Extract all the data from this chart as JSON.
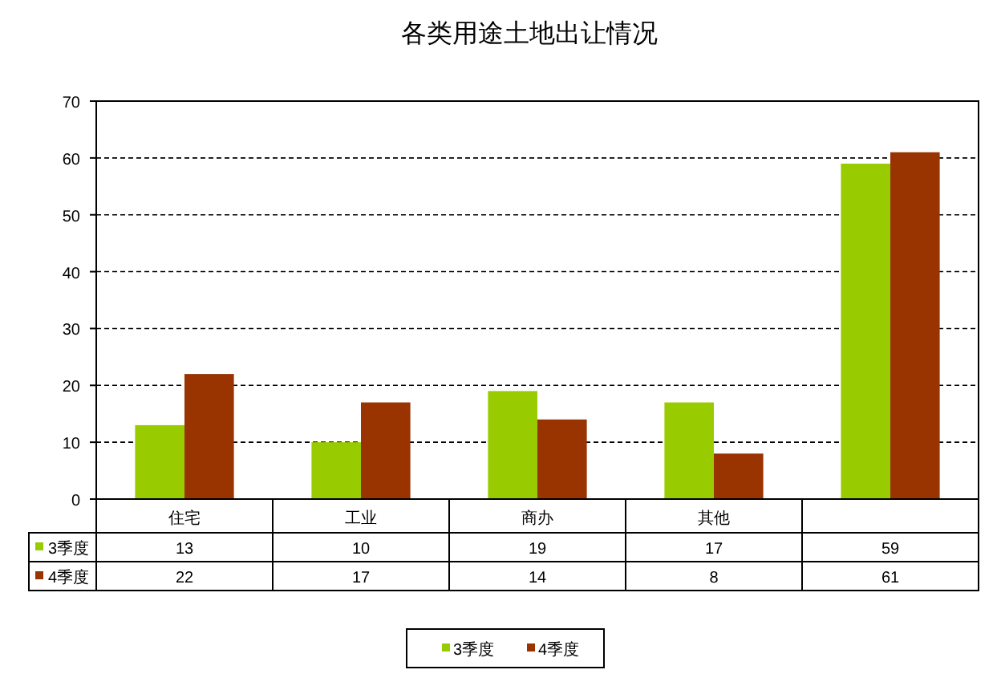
{
  "chart_data": {
    "type": "bar",
    "title": "各类用途土地出让情况",
    "categories": [
      "住宅",
      "工业",
      "商办",
      "其他",
      null
    ],
    "series": [
      {
        "name": "3季度",
        "color": "#99cc00",
        "values": [
          13,
          10,
          19,
          17,
          59
        ]
      },
      {
        "name": "4季度",
        "color": "#993300",
        "values": [
          22,
          17,
          14,
          8,
          61
        ]
      }
    ],
    "ylim": [
      0,
      70
    ],
    "yticks": [
      0,
      10,
      20,
      30,
      40,
      50,
      60,
      70
    ],
    "grid": "y",
    "legend": "bottom",
    "data_labels": true
  }
}
